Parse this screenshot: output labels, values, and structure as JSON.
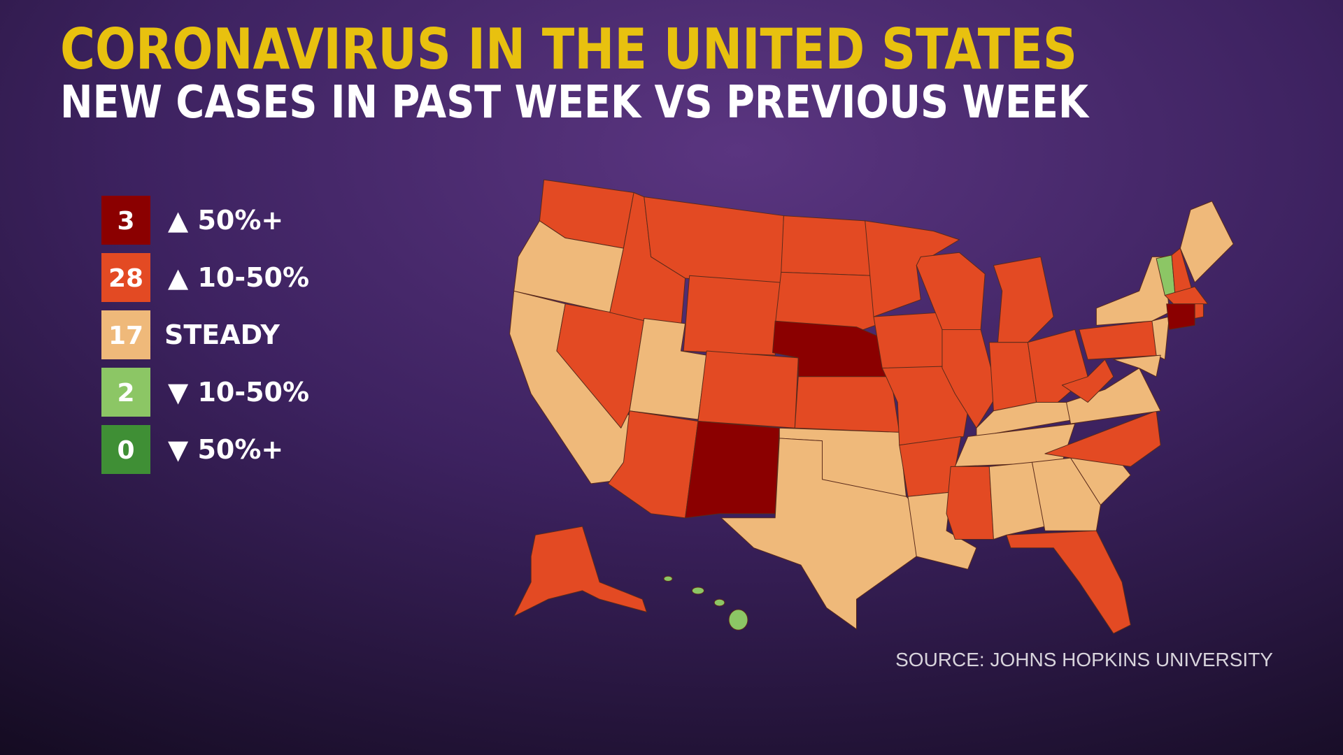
{
  "header": {
    "title": "CORONAVIRUS IN THE UNITED STATES",
    "subtitle": "NEW CASES IN PAST WEEK VS PREVIOUS WEEK"
  },
  "legend": [
    {
      "count": "3",
      "label": "▲ 50%+",
      "color": "#8b0000"
    },
    {
      "count": "28",
      "label": "▲ 10-50%",
      "color": "#e34a23"
    },
    {
      "count": "17",
      "label": "STEADY",
      "color": "#efb97a"
    },
    {
      "count": "2",
      "label": "▼ 10-50%",
      "color": "#8cc665"
    },
    {
      "count": "0",
      "label": "▼ 50%+",
      "color": "#3f8f35"
    }
  ],
  "source": "SOURCE: JOHNS HOPKINS UNIVERSITY"
}
